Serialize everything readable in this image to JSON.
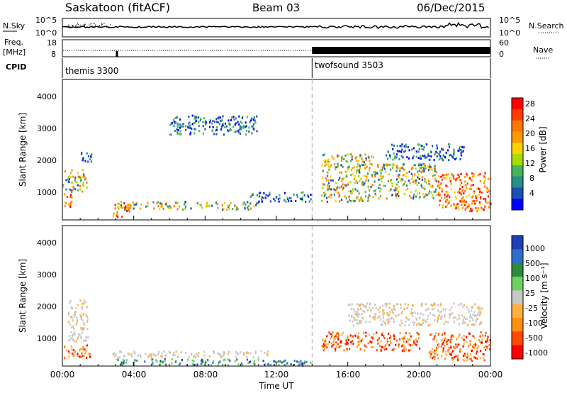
{
  "header": {
    "station": "Saskatoon (fitACF)",
    "beam": "Beam 03",
    "date": "06/Dec/2015"
  },
  "top_panels": {
    "nsky_label": "N.Sky",
    "nsky_ticks": [
      "10^5",
      "10^0"
    ],
    "nsearch_label": "N.Search",
    "nsearch_ticks": [
      "10^5",
      "10^0"
    ],
    "freq_label": "Freq.",
    "freq_unit": "[MHz]",
    "freq_ticks": [
      "18",
      "8"
    ],
    "nave_label": "Nave",
    "nave_ticks": [
      "60",
      "0"
    ],
    "cpid_label": "CPID",
    "cpid_segments": [
      {
        "name": "themis 3300",
        "start_hr": 0,
        "end_hr": 14
      },
      {
        "name": "twofsound 3503",
        "start_hr": 14,
        "end_hr": 24
      }
    ]
  },
  "x_axis": {
    "label": "Time UT",
    "ticks": [
      "00:00",
      "04:00",
      "08:00",
      "12:00",
      "16:00",
      "20:00",
      "00:00"
    ],
    "range_hr": [
      0,
      24
    ],
    "mode_change_hr": 14
  },
  "power_panel": {
    "ylabel": "Slant Range [km]",
    "yticks": [
      "4000",
      "3000",
      "2000",
      "1000"
    ],
    "ylim": [
      200,
      4600
    ],
    "colorbar_label": "Power [dB]",
    "colorbar_ticks": [
      "28",
      "24",
      "20",
      "16",
      "12",
      "8",
      "4"
    ],
    "colors": [
      "#ff0000",
      "#ff3c00",
      "#ff7800",
      "#ff9900",
      "#ffd200",
      "#a8dc00",
      "#48b35c",
      "#2a8e8a",
      "#1d50b4",
      "#0000ff"
    ]
  },
  "velocity_panel": {
    "ylabel": "Slant Range [km]",
    "yticks": [
      "4000",
      "3000",
      "2000",
      "1000"
    ],
    "ylim": [
      200,
      4600
    ],
    "colorbar_label": "Velocity [m s⁻¹]",
    "colorbar_ticks": [
      "1000",
      "500",
      "100",
      "25",
      "-25",
      "-100",
      "-500",
      "-1000"
    ],
    "colors": [
      "#1f3fb4",
      "#2f6ec8",
      "#2f8a3c",
      "#6ed060",
      "#c8c8c8",
      "#ffb040",
      "#ff9010",
      "#ff4a00",
      "#ff0000"
    ]
  },
  "chart_data": {
    "type": "heatmap",
    "x": "time_ut_hours",
    "y": "slant_range_km",
    "power_regions": [
      {
        "t": [
          0.0,
          0.5
        ],
        "r": [
          550,
          1100
        ],
        "level": "high"
      },
      {
        "t": [
          0.0,
          1.4
        ],
        "r": [
          1100,
          1800
        ],
        "level": "mid"
      },
      {
        "t": [
          0.8,
          1.6
        ],
        "r": [
          2050,
          2350
        ],
        "level": "low"
      },
      {
        "t": [
          2.8,
          3.8
        ],
        "r": [
          300,
          800
        ],
        "level": "high"
      },
      {
        "t": [
          3.0,
          11.0
        ],
        "r": [
          550,
          800
        ],
        "level": "mid"
      },
      {
        "t": [
          6.0,
          11.0
        ],
        "r": [
          2900,
          3500
        ],
        "level": "low"
      },
      {
        "t": [
          10.5,
          14.0
        ],
        "r": [
          800,
          1100
        ],
        "level": "low"
      },
      {
        "t": [
          14.5,
          17.5
        ],
        "r": [
          800,
          2300
        ],
        "level": "mid"
      },
      {
        "t": [
          17.5,
          21.0
        ],
        "r": [
          900,
          2000
        ],
        "level": "mid"
      },
      {
        "t": [
          21.0,
          24.0
        ],
        "r": [
          500,
          1700
        ],
        "level": "high"
      },
      {
        "t": [
          18.0,
          22.5
        ],
        "r": [
          2100,
          2600
        ],
        "level": "low"
      }
    ],
    "velocity_regions": [
      {
        "t": [
          0.0,
          1.6
        ],
        "r": [
          450,
          900
        ],
        "level": "neg"
      },
      {
        "t": [
          0.3,
          1.4
        ],
        "r": [
          1000,
          2300
        ],
        "level": "zero"
      },
      {
        "t": [
          2.8,
          11.5
        ],
        "r": [
          500,
          700
        ],
        "level": "zero"
      },
      {
        "t": [
          3.0,
          14.0
        ],
        "r": [
          250,
          450
        ],
        "level": "pos"
      },
      {
        "t": [
          14.5,
          20.0
        ],
        "r": [
          700,
          1300
        ],
        "level": "neg"
      },
      {
        "t": [
          16.0,
          23.5
        ],
        "r": [
          1500,
          2200
        ],
        "level": "zero"
      },
      {
        "t": [
          20.5,
          24.0
        ],
        "r": [
          400,
          1300
        ],
        "level": "neg"
      }
    ]
  }
}
